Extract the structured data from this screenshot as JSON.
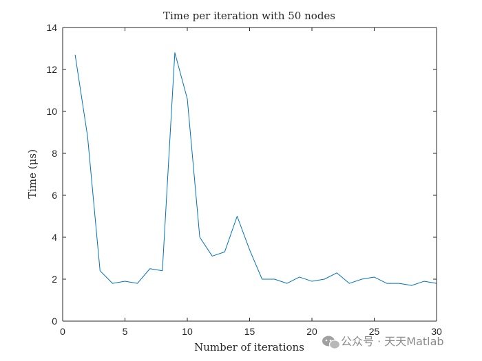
{
  "chart_data": {
    "type": "line",
    "title": "Time per iteration with 50 nodes",
    "xlabel": "Number of iterations",
    "ylabel": "Time (μs)",
    "xlim": [
      0,
      30
    ],
    "ylim": [
      0,
      14
    ],
    "xticks": [
      0,
      5,
      10,
      15,
      20,
      25,
      30
    ],
    "yticks": [
      0,
      2,
      4,
      6,
      8,
      10,
      12,
      14
    ],
    "grid": false,
    "series": [
      {
        "color": "#0072bd",
        "x": [
          1,
          2,
          3,
          4,
          5,
          6,
          7,
          8,
          9,
          10,
          11,
          12,
          13,
          14,
          15,
          16,
          17,
          18,
          19,
          20,
          21,
          22,
          23,
          24,
          25,
          26,
          27,
          28,
          29,
          30
        ],
        "y": [
          12.7,
          8.8,
          2.4,
          1.8,
          1.9,
          1.8,
          2.5,
          2.4,
          12.8,
          10.6,
          4.0,
          3.1,
          3.3,
          5.0,
          3.4,
          2.0,
          2.0,
          1.8,
          2.1,
          1.9,
          2.0,
          2.3,
          1.8,
          2.0,
          2.1,
          1.8,
          1.8,
          1.7,
          1.9,
          1.8
        ]
      }
    ]
  },
  "watermark": {
    "icon": "wechat-icon",
    "text": "公众号 · 天天Matlab"
  }
}
